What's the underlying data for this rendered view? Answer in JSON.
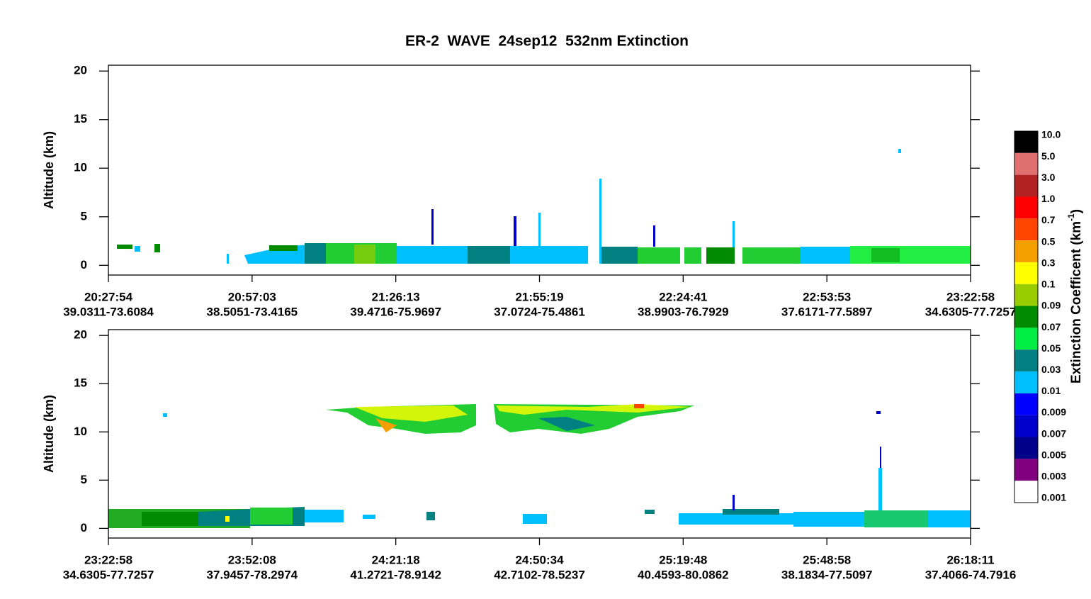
{
  "title": "ER-2  WAVE  24sep12  532nm Extinction",
  "chart_data": [
    {
      "type": "curtain",
      "ylabel": "Altitude (km)",
      "ylim": [
        -1,
        20.6
      ],
      "yticks": [
        0,
        5,
        10,
        15,
        20
      ],
      "xticks": [
        {
          "time": "20:27:54",
          "location": "39.0311-73.6084"
        },
        {
          "time": "20:57:03",
          "location": "38.5051-73.4165"
        },
        {
          "time": "21:26:13",
          "location": "39.4716-75.9697"
        },
        {
          "time": "21:55:19",
          "location": "37.0724-75.4861"
        },
        {
          "time": "22:24:41",
          "location": "38.9903-76.7929"
        },
        {
          "time": "22:53:53",
          "location": "37.6171-77.5897"
        },
        {
          "time": "23:22:58",
          "location": "34.6305-77.7257"
        }
      ]
    },
    {
      "type": "curtain",
      "ylabel": "Altitude (km)",
      "ylim": [
        -1,
        20.6
      ],
      "yticks": [
        0,
        5,
        10,
        15,
        20
      ],
      "xticks": [
        {
          "time": "23:22:58",
          "location": "34.6305-77.7257"
        },
        {
          "time": "23:52:08",
          "location": "37.9457-78.2974"
        },
        {
          "time": "24:21:18",
          "location": "41.2721-78.9142"
        },
        {
          "time": "24:50:34",
          "location": "42.7102-78.5237"
        },
        {
          "time": "25:19:48",
          "location": "40.4593-80.0862"
        },
        {
          "time": "25:48:58",
          "location": "38.1834-77.5097"
        },
        {
          "time": "26:18:11",
          "location": "37.4066-74.7916"
        }
      ]
    }
  ],
  "colorbar": {
    "label": [
      "Extinction Coefficent (km",
      "-1",
      ")"
    ],
    "ticks": [
      {
        "value": 10,
        "label": "10.0"
      },
      {
        "value": 5,
        "label": "5.0"
      },
      {
        "value": 3,
        "label": "3.0"
      },
      {
        "value": 1,
        "label": "1.0"
      },
      0.7,
      0.5,
      0.3,
      0.1,
      0.09,
      0.07,
      0.05,
      0.03,
      0.01,
      0.009,
      0.007,
      0.005,
      0.003,
      0.001
    ],
    "colors": [
      "#000000",
      "#e07070",
      "#b22222",
      "#ff0000",
      "#ff4500",
      "#f5a000",
      "#ffff00",
      "#9acd00",
      "#008b00",
      "#00ee44",
      "#008080",
      "#00bfff",
      "#0000ff",
      "#0000cd",
      "#00008b",
      "#800080",
      "#ffffff"
    ]
  }
}
